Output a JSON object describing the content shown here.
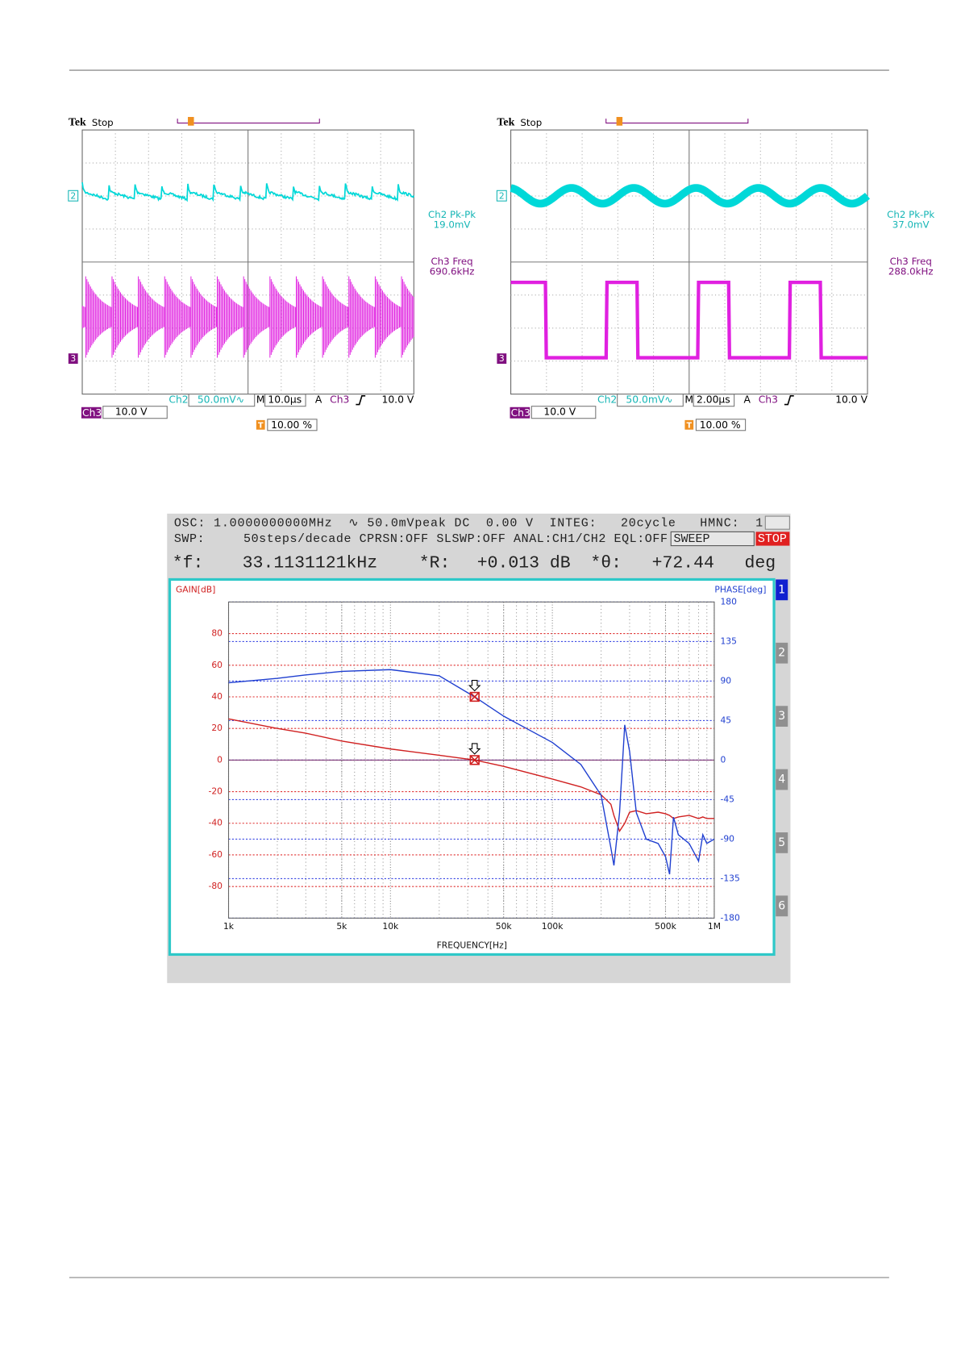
{
  "document": {
    "scopes": [
      {
        "brand": "Tek",
        "state": "Stop",
        "trigger_marker": "T",
        "ch2_marker": "2",
        "ch3_marker": "3",
        "measurements": [
          {
            "label": "Ch2 Pk-Pk",
            "value": "19.0mV"
          },
          {
            "label": "Ch3 Freq",
            "value": "690.6kHz"
          }
        ],
        "ch2": "Ch2",
        "ch2_scale": "50.0mV∿",
        "timebase": "M 10.0µs",
        "trigger_source": "A",
        "trigger_channel": "Ch3",
        "trigger_level": "10.0 V",
        "ch3": "Ch3",
        "ch3_scale": "10.0 V",
        "trigger_position": "10.00 %"
      },
      {
        "brand": "Tek",
        "state": "Stop",
        "trigger_marker": "T",
        "ch2_marker": "2",
        "ch3_marker": "3",
        "measurements": [
          {
            "label": "Ch2 Pk-Pk",
            "value": "37.0mV"
          },
          {
            "label": "Ch3 Freq",
            "value": "288.0kHz"
          }
        ],
        "ch2": "Ch2",
        "ch2_scale": "50.0mV∿",
        "timebase": "M 2.00µs",
        "trigger_source": "A",
        "trigger_channel": "Ch3",
        "trigger_level": "10.0 V",
        "ch3": "Ch3",
        "ch3_scale": "10.0 V",
        "trigger_position": "10.00 %"
      }
    ],
    "analyzer": {
      "line1": "OSC: 1.0000000000MHz  ∿ 50.0mVpeak DC  0.00 V  INTEG:   20cycle   HMNC:  1",
      "line2": "SWP:     50steps/decade CPRSN:OFF SLSWP:OFF ANAL:CH1/CH2 EQL:OFF",
      "sweep": "SWEEP",
      "stop": "STOP",
      "readout": [
        {
          "label": "*f:",
          "value": "33.1131121kHz"
        },
        {
          "label": "*R:",
          "value": "+0.013 dB"
        },
        {
          "label": "*θ:",
          "value": "+72.44"
        }
      ],
      "readout_unit": "deg",
      "tabs": [
        "1",
        "2",
        "3",
        "4",
        "5",
        "6"
      ]
    }
  },
  "chart_data": {
    "type": "line",
    "ylabel": "GAIN[dB]",
    "y2label": "PHASE[deg]",
    "xlabel": "FREQUENCY[Hz]",
    "log_x": true,
    "grid": true,
    "x": [
      1000,
      2000,
      3000,
      5000,
      10000,
      20000,
      33113,
      50000,
      100000,
      150000,
      200000,
      230000,
      240000,
      260000,
      280000,
      300000,
      330000,
      380000,
      450000,
      500000,
      530000,
      560000,
      600000,
      700000,
      800000,
      850000,
      900000,
      1000000
    ],
    "series": [
      {
        "color": "#d02020",
        "values": [
          26,
          20,
          17,
          12,
          7,
          3,
          0,
          -4,
          -12,
          -17,
          -22,
          -28,
          -35,
          -45,
          -40,
          -33,
          -32,
          -34,
          -33,
          -34,
          -35,
          -37,
          -36,
          -35,
          -37,
          -36,
          -37,
          -37
        ]
      },
      {
        "color": "#1f3fd0",
        "axis": "y2",
        "values": [
          88,
          93,
          97,
          101,
          103,
          96,
          72,
          50,
          20,
          -5,
          -40,
          -100,
          -120,
          -60,
          40,
          10,
          -60,
          -90,
          -95,
          -110,
          -130,
          -65,
          -85,
          -95,
          -115,
          -85,
          -95,
          -90
        ]
      }
    ],
    "xlim": [
      1000,
      1000000
    ],
    "xticks": [
      {
        "value": 1000,
        "label": "1k"
      },
      {
        "value": 5000,
        "label": "5k"
      },
      {
        "value": 10000,
        "label": "10k"
      },
      {
        "value": 50000,
        "label": "50k"
      },
      {
        "value": 100000,
        "label": "100k"
      },
      {
        "value": 500000,
        "label": "500k"
      },
      {
        "value": 1000000,
        "label": "1M"
      }
    ],
    "ylim": [
      -100,
      100
    ],
    "yticks": [
      -80,
      -60,
      -40,
      -20,
      0,
      20,
      40,
      60,
      80
    ],
    "y2lim": [
      -180,
      180
    ],
    "y2ticks": [
      -180,
      -135,
      -90,
      -45,
      0,
      45,
      90,
      135,
      180
    ]
  }
}
